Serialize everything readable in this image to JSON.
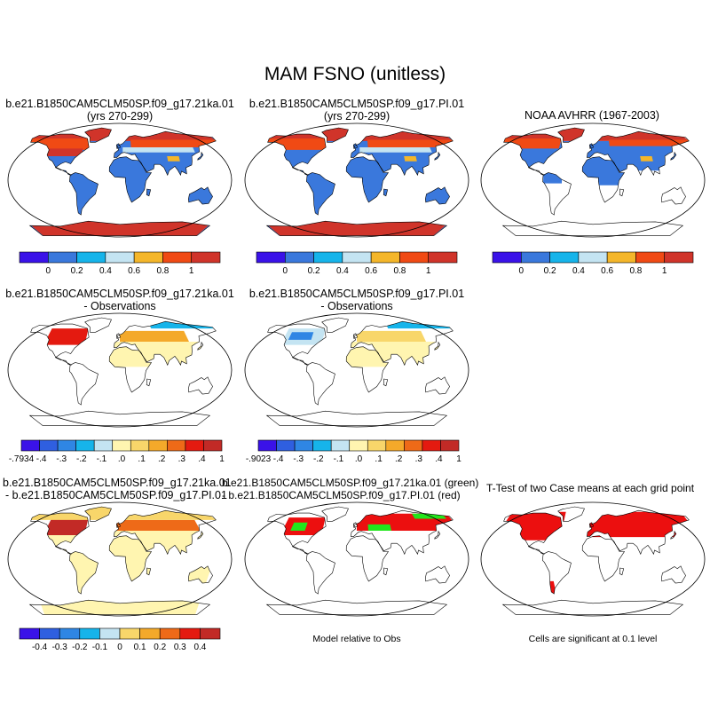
{
  "title": "MAM FSNO (unitless)",
  "colors": {
    "abs_scale": [
      "#3a12e8",
      "#3a78dc",
      "#16b4ea",
      "#c4e4f2",
      "#f4b62a",
      "#f04a14",
      "#d0342a"
    ],
    "diff_scale": [
      "#3a12e8",
      "#2f5fe0",
      "#2f86e4",
      "#16b4ea",
      "#c4e4f2",
      "#fff5b0",
      "#f8d66a",
      "#f4a92a",
      "#ee6a18",
      "#e41a10",
      "#c22a26"
    ],
    "ocean": "#ffffff",
    "land_no_snow": "#ffffff",
    "sig_green": "#22e61c",
    "sig_red": "#ec0f0f"
  },
  "panels": [
    {
      "id": "case1",
      "title_lines": [
        "b.e21.B1850CAM5CLM50SP.f09_g17.21ka.01",
        "(yrs 270-299)"
      ],
      "colorbar": {
        "type": "abs",
        "labels": [
          "0",
          "0.2",
          "0.4",
          "0.6",
          "0.8",
          "1"
        ]
      }
    },
    {
      "id": "case2",
      "title_lines": [
        "b.e21.B1850CAM5CLM50SP.f09_g17.PI.01",
        "(yrs 270-299)"
      ],
      "colorbar": {
        "type": "abs",
        "labels": [
          "0",
          "0.2",
          "0.4",
          "0.6",
          "0.8",
          "1"
        ]
      }
    },
    {
      "id": "obs",
      "title_lines": [
        "NOAA AVHRR (1967-2003)"
      ],
      "colorbar": {
        "type": "abs",
        "labels": [
          "0",
          "0.2",
          "0.4",
          "0.6",
          "0.8",
          "1"
        ]
      }
    },
    {
      "id": "case1-obs",
      "title_lines": [
        "b.e21.B1850CAM5CLM50SP.f09_g17.21ka.01",
        "- Observations"
      ],
      "colorbar": {
        "type": "diff",
        "labels": [
          "-.7934",
          "-.4",
          "-.3",
          "-.2",
          "-.1",
          ".0",
          ".1",
          ".2",
          ".3",
          ".4",
          "1"
        ]
      }
    },
    {
      "id": "case2-obs",
      "title_lines": [
        "b.e21.B1850CAM5CLM50SP.f09_g17.PI.01",
        "- Observations"
      ],
      "colorbar": {
        "type": "diff",
        "labels": [
          "-.9023",
          "-.4",
          "-.3",
          "-.2",
          "-.1",
          ".0",
          ".1",
          ".2",
          ".3",
          ".4",
          "1"
        ]
      }
    },
    {
      "id": "case1-case2",
      "title_lines": [
        "b.e21.B1850CAM5CLM50SP.f09_g17.21ka.01",
        "- b.e21.B1850CAM5CLM50SP.f09_g17.PI.01"
      ],
      "colorbar": {
        "type": "diff10",
        "labels": [
          "-0.4",
          "-0.3",
          "-0.2",
          "-0.1",
          "0",
          "0.1",
          "0.2",
          "0.3",
          "0.4"
        ]
      }
    },
    {
      "id": "model-rel-obs",
      "title_lines": [
        "b.e21.B1850CAM5CLM50SP.f09_g17.21ka.01 (green)",
        "- b.e21.B1850CAM5CLM50SP.f09_g17.PI.01 (red)"
      ],
      "caption": "Model relative to Obs"
    },
    {
      "id": "ttest",
      "title_lines": [
        "T-Test of two Case means at each grid point"
      ],
      "caption": "Cells are significant at 0.1 level"
    }
  ]
}
